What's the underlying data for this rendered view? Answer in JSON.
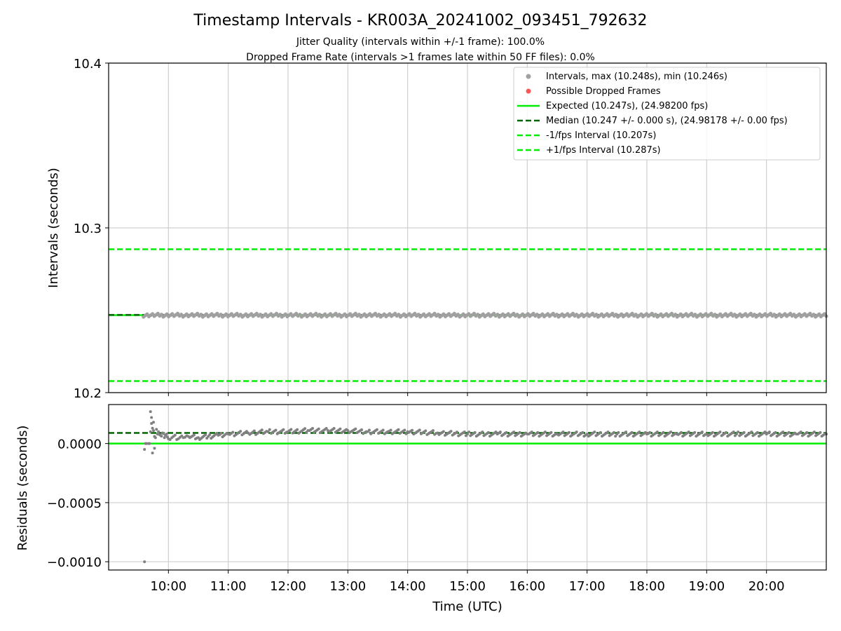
{
  "figure": {
    "title": "Timestamp Intervals - KR003A_20241002_093451_792632",
    "subtitle_1": "Jitter Quality (intervals within +/-1 frame): 100.0%",
    "subtitle_2": "Dropped Frame Rate (intervals >1 frames late within 50 FF files): 0.0%",
    "xlabel": "Time (UTC)"
  },
  "chart_data": [
    {
      "type": "scatter",
      "panel": "top",
      "ylabel": "Intervals (seconds)",
      "xlim": [
        "09:00",
        "21:00"
      ],
      "ylim": [
        10.2,
        10.4
      ],
      "yticks": [
        "10.2",
        "10.3",
        "10.4"
      ],
      "xticks": [
        "10:00",
        "11:00",
        "12:00",
        "13:00",
        "14:00",
        "15:00",
        "16:00",
        "17:00",
        "18:00",
        "19:00",
        "20:00"
      ],
      "grid": true,
      "legend_position": "top-right",
      "series": [
        {
          "name": "Intervals, max (10.248s), min (10.246s)",
          "kind": "scatter",
          "color": "#a0a0a0",
          "x_range": [
            "09:35",
            "21:00"
          ],
          "y_range": [
            10.246,
            10.248
          ]
        },
        {
          "name": "Possible Dropped Frames",
          "kind": "scatter",
          "color": "#ff5555",
          "points": []
        },
        {
          "name": "Expected (10.247s), (24.98200 fps)",
          "kind": "hline",
          "y": 10.247,
          "color": "#00ee00",
          "style": "solid"
        },
        {
          "name": "Median (10.247 +/- 0.000 s), (24.98178 +/- 0.00 fps)",
          "kind": "hline",
          "y": 10.2472,
          "color": "#006400",
          "style": "dashed"
        },
        {
          "name": "-1/fps Interval (10.207s)",
          "kind": "hline",
          "y": 10.207,
          "color": "#00ee00",
          "style": "dashed"
        },
        {
          "name": "+1/fps Interval (10.287s)",
          "kind": "hline",
          "y": 10.287,
          "color": "#00ee00",
          "style": "dashed"
        }
      ]
    },
    {
      "type": "scatter",
      "panel": "bottom",
      "ylabel": "Residuals (seconds)",
      "xlabel": "Time (UTC)",
      "xlim": [
        "09:00",
        "21:00"
      ],
      "ylim": [
        -0.00107,
        0.00033
      ],
      "yticks": [
        "−0.0010",
        "−0.0005",
        "0.0000"
      ],
      "ytick_values": [
        -0.001,
        -0.0005,
        0.0
      ],
      "xticks": [
        "10:00",
        "11:00",
        "12:00",
        "13:00",
        "14:00",
        "15:00",
        "16:00",
        "17:00",
        "18:00",
        "19:00",
        "20:00"
      ],
      "grid": true,
      "lines": [
        {
          "kind": "hline",
          "y": 0.0,
          "color": "#00ee00",
          "style": "solid"
        },
        {
          "kind": "hline",
          "y": 9e-05,
          "color": "#006400",
          "style": "dashed"
        }
      ],
      "residual_points": [
        [
          "09:36",
          -5e-05
        ],
        [
          "09:36",
          -0.001
        ],
        [
          "09:37",
          0.0
        ],
        [
          "09:38",
          0.0
        ],
        [
          "09:40",
          0.0
        ],
        [
          "09:41",
          0.0
        ],
        [
          "09:42",
          0.0001
        ],
        [
          "09:42",
          0.00027
        ],
        [
          "09:43",
          0.00022
        ],
        [
          "09:43",
          0.00017
        ],
        [
          "09:44",
          0.00013
        ],
        [
          "09:44",
          -8e-05
        ],
        [
          "09:45",
          0.00018
        ],
        [
          "09:45",
          0.00011
        ],
        [
          "09:46",
          6e-05
        ],
        [
          "09:46",
          -4e-05
        ],
        [
          "09:47",
          5e-05
        ],
        [
          "09:48",
          0.00012
        ],
        [
          "09:49",
          8e-05
        ],
        [
          "09:50",
          0.0001
        ],
        [
          "09:52",
          7e-05
        ],
        [
          "09:54",
          9e-05
        ],
        [
          "09:56",
          5e-05
        ],
        [
          "09:58",
          8e-05
        ],
        [
          "10:00",
          4e-05
        ],
        [
          "10:05",
          6e-05
        ],
        [
          "10:10",
          4e-05
        ],
        [
          "10:15",
          5e-05
        ],
        [
          "10:20",
          6e-05
        ],
        [
          "10:30",
          5e-05
        ],
        [
          "10:40",
          6e-05
        ],
        [
          "10:50",
          7e-05
        ],
        [
          "11:00",
          8e-05
        ],
        [
          "11:20",
          9e-05
        ],
        [
          "11:40",
          0.0001
        ],
        [
          "12:00",
          0.0001
        ],
        [
          "12:20",
          0.00011
        ],
        [
          "12:40",
          0.00011
        ],
        [
          "13:00",
          0.00011
        ],
        [
          "13:20",
          0.0001
        ],
        [
          "13:40",
          0.0001
        ],
        [
          "14:00",
          0.0001
        ],
        [
          "14:30",
          9e-05
        ],
        [
          "15:00",
          8e-05
        ],
        [
          "15:30",
          8e-05
        ],
        [
          "16:00",
          8e-05
        ],
        [
          "16:30",
          8e-05
        ],
        [
          "17:00",
          8e-05
        ],
        [
          "17:30",
          8e-05
        ],
        [
          "18:00",
          8e-05
        ],
        [
          "18:30",
          8e-05
        ],
        [
          "19:00",
          8e-05
        ],
        [
          "19:30",
          8e-05
        ],
        [
          "20:00",
          8e-05
        ],
        [
          "20:30",
          8e-05
        ],
        [
          "21:00",
          8e-05
        ]
      ]
    }
  ]
}
